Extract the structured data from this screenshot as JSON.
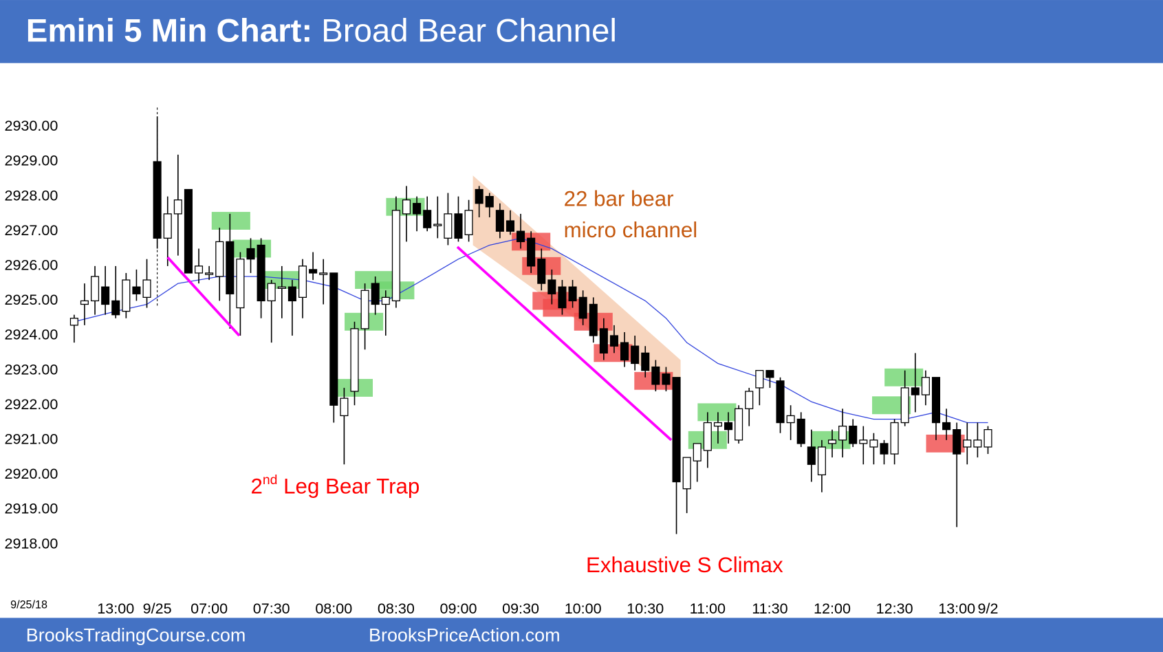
{
  "header": {
    "title_bold": "Emini 5 Min Chart:",
    "title_rest": "Broad Bear Channel"
  },
  "footer": {
    "left": "BrooksTradingCourse.com",
    "right": "BrooksPriceAction.com"
  },
  "chart_data": {
    "type": "candlestick",
    "date_label": "9/25/18",
    "categories": [
      null,
      null,
      null,
      null,
      "13:00",
      null,
      null,
      null,
      "9/25",
      null,
      null,
      null,
      null,
      "07:00",
      null,
      null,
      null,
      null,
      null,
      "07:30",
      null,
      null,
      null,
      null,
      null,
      "08:00",
      null,
      null,
      null,
      null,
      null,
      "08:30",
      null,
      null,
      null,
      null,
      null,
      "09:00",
      null,
      null,
      null,
      null,
      null,
      "09:30",
      null,
      null,
      null,
      null,
      null,
      "10:00",
      null,
      null,
      null,
      null,
      null,
      "10:30",
      null,
      null,
      null,
      null,
      null,
      "11:00",
      null,
      null,
      null,
      null,
      null,
      "11:30",
      null,
      null,
      null,
      null,
      null,
      "12:00",
      null,
      null,
      null,
      null,
      null,
      "12:30",
      null,
      null,
      null,
      null,
      null,
      "13:00",
      null,
      null,
      "9/2"
    ],
    "open": [
      2924.3,
      2924.9,
      2925.0,
      2925.4,
      2925.0,
      2924.7,
      2925.4,
      2925.1,
      2929.0,
      2926.8,
      2927.5,
      2928.2,
      2925.8,
      2925.8,
      2925.7,
      2926.7,
      2924.8,
      2926.5,
      2926.6,
      2925.0,
      2925.4,
      2925.4,
      2925.1,
      2925.9,
      2925.8,
      2925.8,
      2921.7,
      2922.4,
      2924.2,
      2925.5,
      2924.9,
      2925.0,
      2927.5,
      2927.8,
      2927.6,
      2927.2,
      2926.8,
      2927.5,
      2926.9,
      2928.2,
      2928.0,
      2927.6,
      2927.3,
      2927.0,
      2926.8,
      2926.2,
      2925.6,
      2925.4,
      2925.4,
      2925.1,
      2924.9,
      2924.2,
      2924.0,
      2923.8,
      2923.7,
      2923.5,
      2923.1,
      2922.9,
      2922.8,
      2919.6,
      2920.4,
      2920.7,
      2921.4,
      2921.5,
      2921.0,
      2921.9,
      2922.5,
      2923.0,
      2922.7,
      2921.5,
      2921.6,
      2920.8,
      2920.0,
      2920.9,
      2921.0,
      2921.4,
      2920.9,
      2920.8,
      2920.9,
      2920.6,
      2921.5,
      2922.5,
      2922.3,
      2922.8,
      2921.5,
      2921.3,
      2920.8,
      2920.8,
      2920.8
    ],
    "high": [
      2924.6,
      2925.5,
      2926.0,
      2926.0,
      2926.0,
      2925.8,
      2925.9,
      2926.2,
      2930.3,
      2928.0,
      2929.2,
      2928.2,
      2926.5,
      2926.0,
      2927.1,
      2927.5,
      2926.4,
      2926.8,
      2926.8,
      2925.6,
      2926.0,
      2925.6,
      2926.2,
      2926.4,
      2926.2,
      2925.8,
      2922.5,
      2924.4,
      2925.5,
      2925.7,
      2925.3,
      2928.0,
      2928.3,
      2928.0,
      2928.0,
      2928.0,
      2928.1,
      2928.0,
      2927.9,
      2928.3,
      2928.1,
      2927.8,
      2927.6,
      2927.5,
      2927.0,
      2926.5,
      2925.9,
      2925.6,
      2925.6,
      2925.3,
      2925.1,
      2924.5,
      2924.3,
      2924.1,
      2924.0,
      2923.7,
      2923.3,
      2923.1,
      2922.8,
      2920.5,
      2920.9,
      2921.8,
      2921.8,
      2921.8,
      2922.0,
      2922.5,
      2923.0,
      2923.0,
      2922.8,
      2922.0,
      2921.8,
      2921.3,
      2921.0,
      2921.3,
      2921.9,
      2921.6,
      2921.4,
      2921.2,
      2921.0,
      2921.6,
      2923.0,
      2923.5,
      2923.0,
      2922.8,
      2921.9,
      2921.5,
      2921.5,
      2921.5,
      2921.4
    ],
    "low": [
      2923.8,
      2924.3,
      2924.6,
      2924.6,
      2924.5,
      2924.5,
      2925.0,
      2924.8,
      2926.5,
      2926.0,
      2926.3,
      2925.8,
      2925.5,
      2925.6,
      2925.0,
      2924.2,
      2924.0,
      2925.8,
      2924.5,
      2923.8,
      2924.5,
      2924.0,
      2924.5,
      2925.6,
      2924.9,
      2921.5,
      2920.3,
      2922.0,
      2923.6,
      2924.6,
      2924.0,
      2924.8,
      2926.7,
      2927.0,
      2927.0,
      2926.8,
      2926.6,
      2926.7,
      2926.7,
      2927.4,
      2927.4,
      2926.8,
      2926.9,
      2926.5,
      2925.8,
      2925.3,
      2924.9,
      2924.6,
      2924.8,
      2924.3,
      2923.8,
      2923.3,
      2923.5,
      2923.1,
      2923.0,
      2922.8,
      2922.4,
      2922.4,
      2918.3,
      2918.9,
      2919.8,
      2920.2,
      2920.9,
      2920.9,
      2920.9,
      2921.4,
      2922.0,
      2922.5,
      2921.2,
      2921.0,
      2920.8,
      2919.8,
      2919.5,
      2920.5,
      2920.5,
      2920.8,
      2920.3,
      2920.3,
      2920.3,
      2920.3,
      2921.4,
      2921.8,
      2922.0,
      2921.0,
      2921.0,
      2918.5,
      2920.3,
      2920.5,
      2920.6
    ],
    "close": [
      2924.5,
      2925.0,
      2925.7,
      2924.9,
      2924.6,
      2925.6,
      2925.2,
      2925.6,
      2926.8,
      2927.5,
      2927.9,
      2925.8,
      2926.0,
      2925.8,
      2926.7,
      2925.2,
      2926.2,
      2926.2,
      2925.0,
      2925.5,
      2925.4,
      2925.0,
      2926.0,
      2925.8,
      2925.8,
      2922.0,
      2922.2,
      2924.2,
      2925.3,
      2924.9,
      2925.1,
      2927.6,
      2927.9,
      2927.5,
      2927.1,
      2927.2,
      2927.5,
      2926.8,
      2927.6,
      2927.8,
      2927.7,
      2927.0,
      2927.0,
      2926.7,
      2926.0,
      2925.5,
      2925.2,
      2924.8,
      2925.0,
      2924.5,
      2924.0,
      2923.5,
      2923.7,
      2923.3,
      2923.2,
      2923.0,
      2922.6,
      2922.6,
      2919.8,
      2920.5,
      2920.9,
      2921.5,
      2921.5,
      2921.3,
      2921.9,
      2922.4,
      2923.0,
      2922.8,
      2921.5,
      2921.7,
      2920.9,
      2920.3,
      2920.8,
      2921.0,
      2921.4,
      2920.9,
      2921.0,
      2921.0,
      2920.6,
      2921.5,
      2922.5,
      2922.3,
      2922.8,
      2921.5,
      2921.3,
      2920.6,
      2921.0,
      2921.0,
      2921.3
    ],
    "ema": {
      "color": "#3344dd",
      "x": [
        0,
        4,
        7,
        8,
        10,
        14,
        18,
        22,
        25,
        28,
        30,
        33,
        37,
        40,
        43,
        46,
        49,
        52,
        55,
        57,
        59,
        62,
        65,
        68,
        71,
        74,
        77,
        80,
        83,
        86,
        88
      ],
      "values": [
        2924.4,
        2924.7,
        2924.9,
        2925.1,
        2925.5,
        2925.7,
        2925.7,
        2925.6,
        2925.4,
        2925.0,
        2925.0,
        2925.5,
        2926.2,
        2926.6,
        2926.8,
        2926.5,
        2926.0,
        2925.5,
        2925.0,
        2924.5,
        2923.8,
        2923.2,
        2922.9,
        2922.6,
        2922.1,
        2921.8,
        2921.6,
        2921.6,
        2921.8,
        2921.5,
        2921.5
      ]
    },
    "highlights": [
      {
        "color": "#6fd46f",
        "bars": [
          15.1,
          17.1,
          20.1,
          26.9,
          27.9,
          28.9,
          30.9,
          31.9,
          61,
          61.9,
          72.9,
          78.7,
          79.9
        ],
        "prices": [
          2927.3,
          2926.5,
          2925.6,
          2922.5,
          2924.4,
          2925.6,
          2925.3,
          2927.7,
          2921.0,
          2921.8,
          2921.0,
          2922.0,
          2922.8
        ]
      },
      {
        "color": "#f04a4a",
        "bars": [
          44,
          45,
          46,
          47,
          50,
          51.9,
          55.8,
          83.9
        ],
        "prices": [
          2926.7,
          2926.0,
          2925.0,
          2924.8,
          2924.4,
          2923.5,
          2922.7,
          2920.9
        ]
      }
    ],
    "trendlines": {
      "color": "#ff00ff",
      "lines": [
        {
          "x": [
            9,
            15.9
          ],
          "y": [
            2926.25,
            2924.0
          ]
        },
        {
          "x": [
            36.9,
            57.5
          ],
          "y": [
            2926.55,
            2921.0
          ]
        }
      ]
    },
    "channel": {
      "color": "#f4c7a8",
      "x": [
        38.4,
        58.4,
        58.4,
        38.4
      ],
      "y": [
        2928.6,
        2923.3,
        2922.3,
        2926.6
      ]
    },
    "session_break": 8,
    "ylim": [
      2916.5,
      2931.5
    ],
    "yticks": [
      {
        "value": 2930,
        "label": "2930.00"
      },
      {
        "value": 2929,
        "label": "2929.00"
      },
      {
        "value": 2928,
        "label": "2928.00"
      },
      {
        "value": 2927,
        "label": "2927.00"
      },
      {
        "value": 2926,
        "label": "2926.00"
      },
      {
        "value": 2925,
        "label": "2925.00"
      },
      {
        "value": 2924,
        "label": "2924.00"
      },
      {
        "value": 2923,
        "label": "2923.00"
      },
      {
        "value": 2922,
        "label": "2922.00"
      },
      {
        "value": 2921,
        "label": "2921.00"
      },
      {
        "value": 2920,
        "label": "2920.00"
      },
      {
        "value": 2919,
        "label": "2919.00"
      },
      {
        "value": 2918,
        "label": "2918.00"
      }
    ],
    "annotations": {
      "channel_line1": "22 bar bear",
      "channel_line2": "micro channel",
      "trap_num": "2",
      "trap_sup": "nd",
      "trap_rest": " Leg Bear Trap",
      "climax": "Exhaustive S Climax"
    }
  }
}
